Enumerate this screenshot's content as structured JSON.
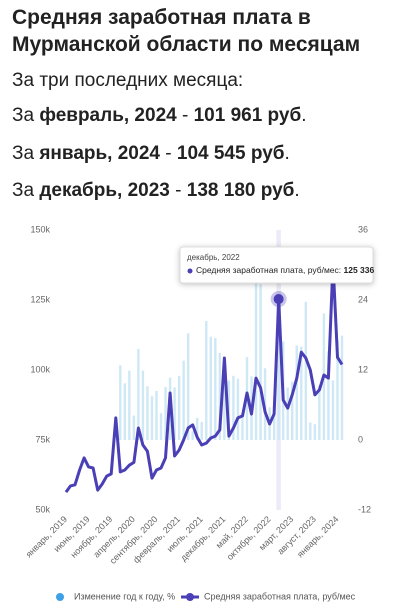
{
  "header": {
    "title": "Средняя заработная плата в Мурманской области по месяцам",
    "subtitle": "За три последних месяца:",
    "lines": [
      [
        {
          "text": "За ",
          "bold": false
        },
        {
          "text": "февраль, 2024",
          "bold": true
        },
        {
          "text": " - ",
          "bold": false
        },
        {
          "text": "101 961 руб",
          "bold": true
        },
        {
          "text": ".",
          "bold": false
        }
      ],
      [
        {
          "text": "За ",
          "bold": false
        },
        {
          "text": "январь, 2024",
          "bold": true
        },
        {
          "text": " - ",
          "bold": false
        },
        {
          "text": "104 545 руб",
          "bold": true
        },
        {
          "text": ".",
          "bold": false
        }
      ],
      [
        {
          "text": "За ",
          "bold": false
        },
        {
          "text": "декабрь, 2023",
          "bold": true
        },
        {
          "text": " - ",
          "bold": false
        },
        {
          "text": "138 180 руб",
          "bold": true
        },
        {
          "text": ".",
          "bold": false
        }
      ]
    ]
  },
  "chart_data": {
    "type": "line",
    "categories": [
      "январь, 2019",
      null,
      null,
      null,
      null,
      "июнь, 2019",
      null,
      null,
      null,
      null,
      "ноябрь, 2019",
      null,
      null,
      null,
      null,
      "апрель, 2020",
      null,
      null,
      null,
      null,
      "сентябрь, 2020",
      null,
      null,
      null,
      null,
      "февраль, 2021",
      null,
      null,
      null,
      null,
      "июль, 2021",
      null,
      null,
      null,
      null,
      "декабрь, 2021",
      null,
      null,
      null,
      null,
      "май, 2022",
      null,
      null,
      null,
      null,
      "октябрь, 2022",
      null,
      null,
      null,
      null,
      "март, 2023",
      null,
      null,
      null,
      null,
      "август, 2023",
      null,
      null,
      null,
      null,
      "январь, 2024",
      null
    ],
    "series": [
      {
        "name": "Изменение год к году, %",
        "type": "bar",
        "axis": "y2",
        "color": "#cfe8f5",
        "legend_color": "#3ea0e6",
        "values": [
          null,
          null,
          null,
          null,
          null,
          null,
          null,
          null,
          null,
          null,
          null,
          null,
          12.8,
          9.7,
          11.9,
          4.2,
          15.6,
          11.9,
          9.2,
          7.5,
          8.4,
          4.6,
          9.1,
          10.7,
          9.0,
          11.0,
          13.6,
          18.3,
          1.5,
          3.8,
          3.1,
          20.4,
          17.7,
          17.5,
          14.9,
          13.6,
          10.2,
          11.0,
          10.5,
          4.5,
          14.2,
          10.9,
          32.7,
          26.7,
          12.3,
          5.6,
          7.3,
          20.2,
          16.9,
          9.0,
          10.0,
          16.2,
          16.0,
          23.7,
          3.0,
          2.7,
          9.3,
          21.7,
          15.2,
          10.2,
          17.1,
          17.9
        ]
      },
      {
        "name": "Средняя заработная плата, руб/мес",
        "type": "line",
        "color": "#4a3fb5",
        "values": [
          56400,
          58600,
          59000,
          64300,
          68600,
          65400,
          65000,
          57100,
          59300,
          62100,
          62900,
          82900,
          63600,
          64300,
          66000,
          67000,
          79300,
          73200,
          71000,
          61400,
          64300,
          65000,
          68600,
          91800,
          69300,
          71400,
          75000,
          79300,
          80400,
          76000,
          73200,
          73900,
          75700,
          76400,
          78600,
          104300,
          76400,
          79300,
          82900,
          83600,
          91800,
          84300,
          97100,
          93600,
          85000,
          80700,
          84300,
          125336,
          89300,
          86400,
          91100,
          97100,
          106400,
          104300,
          100000,
          91100,
          92900,
          98200,
          97100,
          138180,
          104545,
          101961
        ]
      }
    ],
    "ylim": [
      50000,
      150000
    ],
    "yticks": [
      {
        "value": 50000,
        "label": "50k"
      },
      {
        "value": 75000,
        "label": "75k"
      },
      {
        "value": 100000,
        "label": "100k"
      },
      {
        "value": 125000,
        "label": "125k"
      },
      {
        "value": 150000,
        "label": "150k"
      }
    ],
    "y2lim": [
      -12,
      36
    ],
    "y2ticks": [
      -12,
      0,
      12,
      24,
      36
    ],
    "grid": false,
    "legend": "bottom",
    "tooltip": {
      "title": "декабрь, 2022",
      "label": "Средняя заработная плата, руб/мес:",
      "value": "125 336",
      "index": 47
    }
  }
}
